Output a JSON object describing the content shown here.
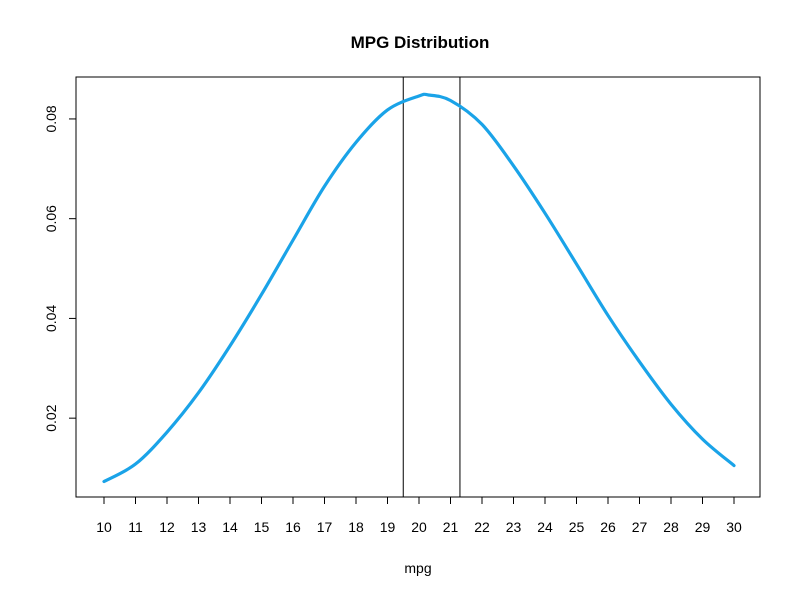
{
  "chart_data": {
    "type": "line",
    "title": "MPG Distribution",
    "xlabel": "mpg",
    "ylabel": "",
    "xlim": [
      10,
      30
    ],
    "ylim": [
      0.0072,
      0.085
    ],
    "x_ticks": [
      10,
      11,
      12,
      13,
      14,
      15,
      16,
      17,
      18,
      19,
      20,
      21,
      22,
      23,
      24,
      25,
      26,
      27,
      28,
      29,
      30
    ],
    "y_ticks": [
      0.02,
      0.04,
      0.06,
      0.08
    ],
    "y_tick_labels": [
      "0.02",
      "0.04",
      "0.06",
      "0.08"
    ],
    "grid": false,
    "series": [
      {
        "color": "#1aa3e8",
        "x": [
          10,
          11,
          12,
          13,
          14,
          15,
          16,
          17,
          18,
          19,
          20,
          20.3,
          21,
          22,
          23,
          24,
          25,
          26,
          27,
          28,
          29,
          30
        ],
        "y": [
          0.0073,
          0.0108,
          0.0172,
          0.0251,
          0.0345,
          0.0448,
          0.0557,
          0.0665,
          0.0753,
          0.0818,
          0.0846,
          0.0848,
          0.0837,
          0.0789,
          0.0706,
          0.0611,
          0.0509,
          0.0406,
          0.0313,
          0.0228,
          0.0158,
          0.0105
        ]
      }
    ],
    "vlines": [
      19.5,
      21.3
    ]
  }
}
